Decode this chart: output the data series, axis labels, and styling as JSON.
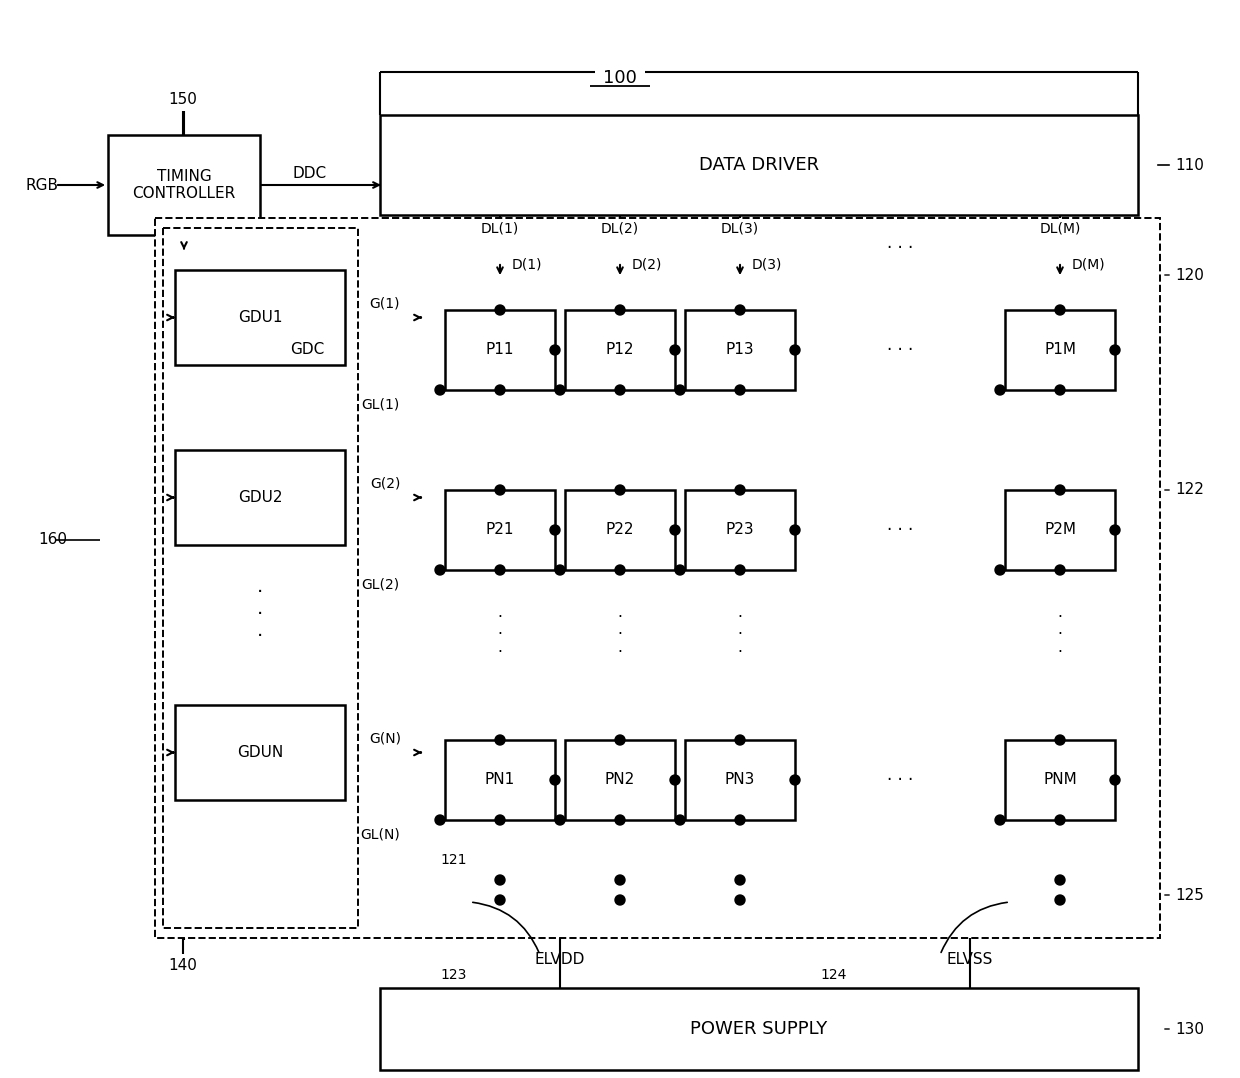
{
  "bg_color": "#ffffff",
  "lc": "#000000",
  "figsize": [
    12.4,
    10.78
  ],
  "dpi": 100,
  "labels": {
    "100": "100",
    "150": "150",
    "110": "110",
    "120": "120",
    "121": "121",
    "122": "122",
    "123": "123",
    "124": "124",
    "125": "125",
    "130": "130",
    "140": "140",
    "160": "160"
  },
  "timing_controller_label": "TIMING\nCONTROLLER",
  "data_driver_label": "DATA DRIVER",
  "power_supply_label": "POWER SUPPLY",
  "gdu_labels": [
    "GDU1",
    "GDU2",
    "GDUN"
  ],
  "pixel_labels": [
    [
      "P11",
      "P12",
      "P13",
      "P1M"
    ],
    [
      "P21",
      "P22",
      "P23",
      "P2M"
    ],
    [
      "PN1",
      "PN2",
      "PN3",
      "PNM"
    ]
  ],
  "rgb_label": "RGB",
  "ddc_label": "DDC",
  "gdc_label": "GDC",
  "elvdd_label": "ELVDD",
  "elvss_label": "ELVSS",
  "dl_labels": [
    "DL(1)",
    "DL(2)",
    "DL(3)",
    "DL(M)"
  ],
  "d_labels": [
    "D(1)",
    "D(2)",
    "D(3)",
    "D(M)"
  ],
  "g_labels": [
    "G(1)",
    "G(2)",
    "G(N)"
  ],
  "gl_labels": [
    "GL(1)",
    "GL(2)",
    "GL(N)"
  ]
}
